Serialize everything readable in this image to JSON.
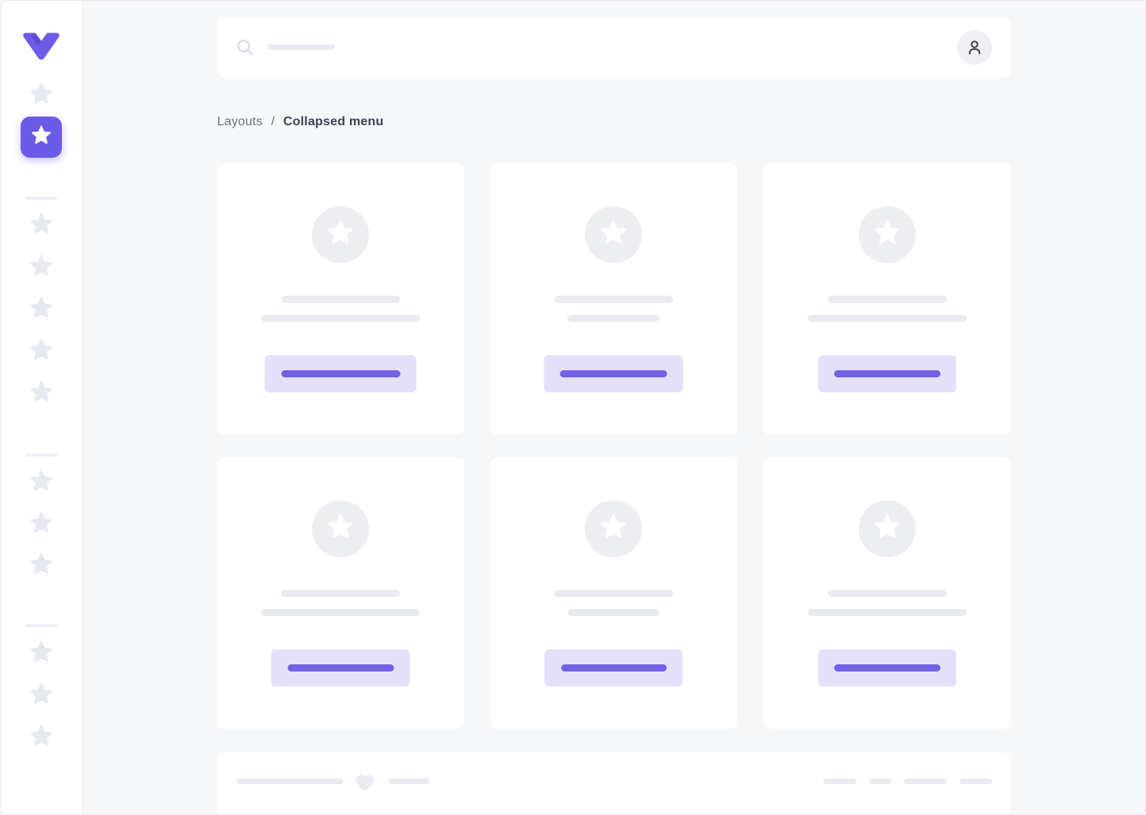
{
  "colors": {
    "primary": "#6a5be8",
    "primary_light": "#e4e0fa",
    "accent_line": "#7161e4",
    "placeholder": "#e9ebf0",
    "placeholder_circle": "#eceef2",
    "background": "#f6f7f9",
    "surface": "#ffffff",
    "text_dark": "#3c4257",
    "text_muted": "#6d7280"
  },
  "sidebar": {
    "logo_icon": "vuesax-logo-icon",
    "items": [
      {
        "icon": "star-icon",
        "active": false
      },
      {
        "icon": "star-icon",
        "active": true
      },
      {
        "divider": true
      },
      {
        "icon": "star-icon",
        "active": false
      },
      {
        "icon": "star-icon",
        "active": false
      },
      {
        "icon": "star-icon",
        "active": false
      },
      {
        "icon": "star-icon",
        "active": false
      },
      {
        "icon": "star-icon",
        "active": false
      },
      {
        "divider": true
      },
      {
        "icon": "star-icon",
        "active": false
      },
      {
        "icon": "star-icon",
        "active": false
      },
      {
        "icon": "star-icon",
        "active": false
      },
      {
        "divider": true
      },
      {
        "icon": "star-icon",
        "active": false
      },
      {
        "icon": "star-icon",
        "active": false
      },
      {
        "icon": "star-icon",
        "active": false
      }
    ]
  },
  "header": {
    "search_icon": "search-icon",
    "search_placeholder_text": "",
    "search_placeholder_width": 85,
    "profile_icon": "user-icon"
  },
  "breadcrumb": {
    "parent": "Layouts",
    "separator": "/",
    "current": "Collapsed menu"
  },
  "content": {
    "cards": [
      {
        "media_icon": "star-icon",
        "line_widths": [
          150,
          200
        ],
        "button_width": 191,
        "button_line_width": 150
      },
      {
        "media_icon": "star-icon",
        "line_widths": [
          150,
          116
        ],
        "button_width": 175,
        "button_line_width": 135
      },
      {
        "media_icon": "star-icon",
        "line_widths": [
          150,
          200
        ],
        "button_width": 174,
        "button_line_width": 134
      },
      {
        "media_icon": "star-icon",
        "line_widths": [
          150,
          200
        ],
        "button_width": 175,
        "button_line_width": 134
      },
      {
        "media_icon": "star-icon",
        "line_widths": [
          150,
          115
        ],
        "button_width": 174,
        "button_line_width": 133
      },
      {
        "media_icon": "star-icon",
        "line_widths": [
          150,
          200
        ],
        "button_width": 174,
        "button_line_width": 134
      }
    ]
  },
  "footer": {
    "left_line_widths": [
      135,
      51
    ],
    "heart_icon": "heart-icon",
    "right_pill_widths": [
      42,
      28,
      54,
      41
    ]
  }
}
